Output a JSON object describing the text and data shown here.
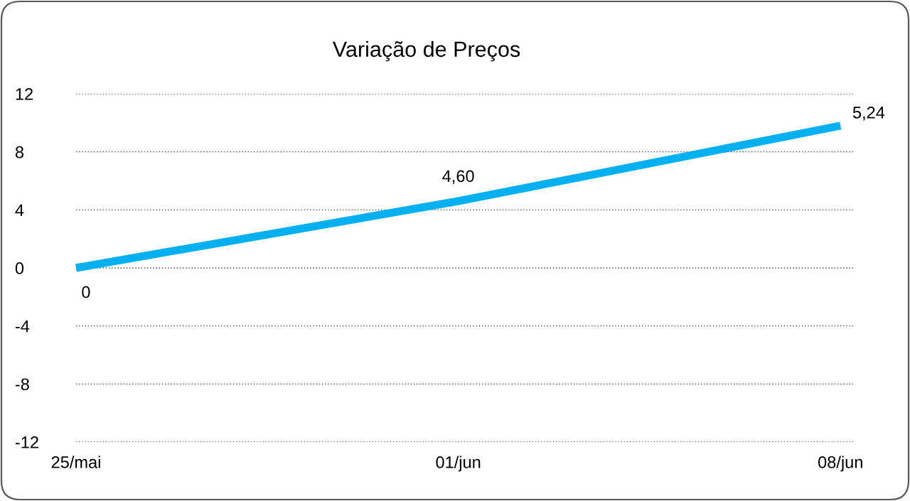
{
  "chart_data": {
    "type": "line",
    "title": "Variação de Preços",
    "categories": [
      "25/mai",
      "01/jun",
      "08/jun"
    ],
    "series": [
      {
        "color": "#00b0f0",
        "values": [
          0,
          4.6,
          9.8
        ],
        "value_labels": [
          "0",
          "4,60",
          null
        ]
      }
    ],
    "annotations": [
      {
        "text": "5,24",
        "x": "08/jun",
        "y": 9.8
      }
    ],
    "ylim": [
      -12,
      12
    ],
    "yticks": [
      -12,
      -8,
      -4,
      0,
      4,
      8,
      12
    ],
    "grid": "y",
    "line_style": "solid"
  }
}
